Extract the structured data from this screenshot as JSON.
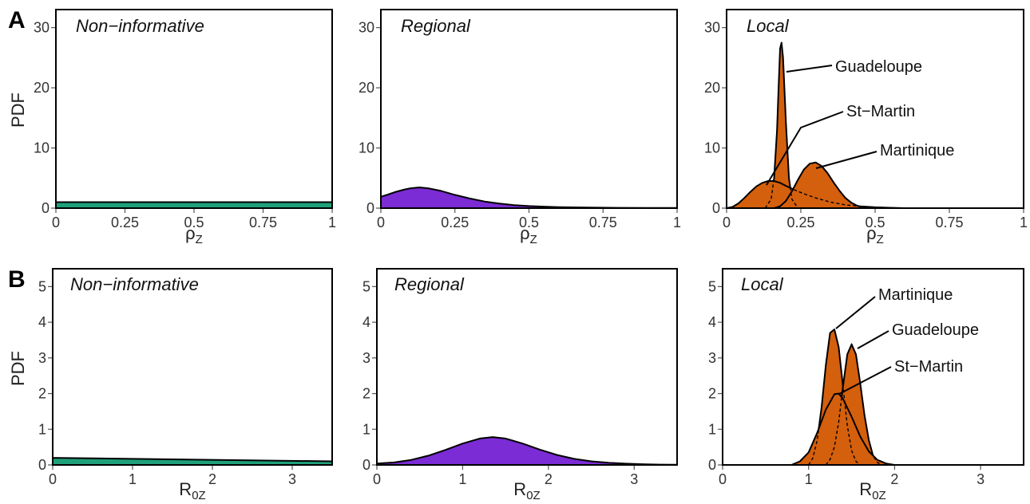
{
  "chart_data": [
    {
      "type": "area",
      "row": "A",
      "title": "Non−informative",
      "xlabel": "ρ",
      "xlabel_sub": "Z",
      "ylabel": "PDF",
      "xlim": [
        0,
        1
      ],
      "ylim": [
        0,
        33
      ],
      "xticks": [
        0,
        0.25,
        0.5,
        0.75,
        1
      ],
      "xtick_labels": [
        "0",
        "0.25",
        "0.5",
        "0.75",
        "1"
      ],
      "yticks": [
        0,
        10,
        20,
        30
      ],
      "ytick_labels": [
        "0",
        "10",
        "20",
        "30"
      ],
      "color": "#1fa07a",
      "series": [
        {
          "x": [
            0,
            1
          ],
          "y": [
            1,
            1
          ],
          "filled": true
        }
      ]
    },
    {
      "type": "area",
      "row": "A",
      "title": "Regional",
      "xlabel": "ρ",
      "xlabel_sub": "Z",
      "ylabel": "",
      "xlim": [
        0,
        1
      ],
      "ylim": [
        0,
        33
      ],
      "xticks": [
        0,
        0.25,
        0.5,
        0.75,
        1
      ],
      "xtick_labels": [
        "0",
        "0.25",
        "0.5",
        "0.75",
        "1"
      ],
      "yticks": [
        0,
        10,
        20,
        30
      ],
      "ytick_labels": [
        "0",
        "10",
        "20",
        "30"
      ],
      "color": "#7b2cd4",
      "series": [
        {
          "x": [
            0,
            0.02,
            0.05,
            0.08,
            0.1,
            0.13,
            0.16,
            0.2,
            0.25,
            0.3,
            0.35,
            0.4,
            0.45,
            0.5,
            0.55,
            0.6,
            0.7,
            0.8,
            0.9,
            1.0
          ],
          "y": [
            1.9,
            2.2,
            2.7,
            3.1,
            3.3,
            3.45,
            3.3,
            2.9,
            2.2,
            1.6,
            1.1,
            0.75,
            0.5,
            0.35,
            0.25,
            0.17,
            0.09,
            0.05,
            0.03,
            0.02
          ],
          "filled": true
        }
      ]
    },
    {
      "type": "area",
      "row": "A",
      "title": "Local",
      "xlabel": "ρ",
      "xlabel_sub": "Z",
      "ylabel": "",
      "xlim": [
        0,
        1
      ],
      "ylim": [
        0,
        33
      ],
      "xticks": [
        0,
        0.25,
        0.5,
        0.75,
        1
      ],
      "xtick_labels": [
        "0",
        "0.25",
        "0.5",
        "0.75",
        "1"
      ],
      "yticks": [
        0,
        10,
        20,
        30
      ],
      "ytick_labels": [
        "0",
        "10",
        "20",
        "30"
      ],
      "color": "#d45f0c",
      "series": [
        {
          "name": "Guadeloupe",
          "x": [
            0.13,
            0.15,
            0.16,
            0.17,
            0.175,
            0.18,
            0.185,
            0.19,
            0.2,
            0.21,
            0.22,
            0.24
          ],
          "y": [
            0,
            1.5,
            5,
            13,
            20,
            26.5,
            27.5,
            25,
            14,
            5,
            1.5,
            0
          ],
          "filled": true
        },
        {
          "name": "St−Martin",
          "x": [
            0,
            0.02,
            0.04,
            0.06,
            0.08,
            0.1,
            0.12,
            0.14,
            0.16,
            0.18,
            0.2,
            0.23,
            0.26,
            0.3,
            0.35,
            0.4,
            0.45,
            0.5,
            0.55,
            0.6
          ],
          "y": [
            0,
            0.2,
            0.8,
            1.7,
            2.7,
            3.6,
            4.2,
            4.5,
            4.5,
            4.2,
            3.7,
            3.0,
            2.4,
            1.7,
            1.0,
            0.55,
            0.3,
            0.15,
            0.07,
            0
          ],
          "filled": true
        },
        {
          "name": "Martinique",
          "x": [
            0.16,
            0.18,
            0.2,
            0.22,
            0.24,
            0.26,
            0.28,
            0.3,
            0.32,
            0.34,
            0.36,
            0.38,
            0.4,
            0.42,
            0.44,
            0.46,
            0.48
          ],
          "y": [
            0,
            0.3,
            1.2,
            2.8,
            4.7,
            6.4,
            7.4,
            7.6,
            7.0,
            5.8,
            4.3,
            2.9,
            1.7,
            0.9,
            0.4,
            0.15,
            0
          ],
          "filled": true
        }
      ],
      "annotations": [
        "Guadeloupe",
        "St−Martin",
        "Martinique"
      ]
    },
    {
      "type": "area",
      "row": "B",
      "title": "Non−informative",
      "xlabel": "R",
      "xlabel_sub": "0Z",
      "ylabel": "PDF",
      "xlim": [
        0,
        3.5
      ],
      "ylim": [
        0,
        5.5
      ],
      "xticks": [
        0,
        1,
        2,
        3
      ],
      "xtick_labels": [
        "0",
        "1",
        "2",
        "3"
      ],
      "yticks": [
        0,
        1,
        2,
        3,
        4,
        5
      ],
      "ytick_labels": [
        "0",
        "1",
        "2",
        "3",
        "4",
        "5"
      ],
      "color": "#1fa07a",
      "series": [
        {
          "x": [
            0,
            3.5
          ],
          "y": [
            0.2,
            0.1
          ],
          "filled": true
        }
      ]
    },
    {
      "type": "area",
      "row": "B",
      "title": "Regional",
      "xlabel": "R",
      "xlabel_sub": "0Z",
      "ylabel": "",
      "xlim": [
        0,
        3.5
      ],
      "ylim": [
        0,
        5.5
      ],
      "xticks": [
        0,
        1,
        2,
        3
      ],
      "xtick_labels": [
        "0",
        "1",
        "2",
        "3"
      ],
      "yticks": [
        0,
        1,
        2,
        3,
        4,
        5
      ],
      "ytick_labels": [
        "0",
        "1",
        "2",
        "3",
        "4",
        "5"
      ],
      "color": "#7b2cd4",
      "series": [
        {
          "x": [
            0,
            0.2,
            0.4,
            0.6,
            0.8,
            1.0,
            1.2,
            1.35,
            1.5,
            1.7,
            1.9,
            2.1,
            2.3,
            2.5,
            2.7,
            2.9,
            3.1,
            3.3,
            3.5
          ],
          "y": [
            0.04,
            0.07,
            0.14,
            0.26,
            0.42,
            0.6,
            0.74,
            0.78,
            0.74,
            0.6,
            0.43,
            0.28,
            0.17,
            0.1,
            0.06,
            0.035,
            0.02,
            0.01,
            0.005
          ],
          "filled": true
        }
      ]
    },
    {
      "type": "area",
      "row": "B",
      "title": "Local",
      "xlabel": "R",
      "xlabel_sub": "0Z",
      "ylabel": "",
      "xlim": [
        0,
        3.5
      ],
      "ylim": [
        0,
        5.5
      ],
      "xticks": [
        0,
        1,
        2,
        3
      ],
      "xtick_labels": [
        "0",
        "1",
        "2",
        "3"
      ],
      "yticks": [
        0,
        1,
        2,
        3,
        4,
        5
      ],
      "ytick_labels": [
        "0",
        "1",
        "2",
        "3",
        "4",
        "5"
      ],
      "color": "#d45f0c",
      "series": [
        {
          "name": "Martinique",
          "x": [
            1.0,
            1.05,
            1.1,
            1.15,
            1.2,
            1.25,
            1.3,
            1.35,
            1.4,
            1.45,
            1.5,
            1.55,
            1.6
          ],
          "y": [
            0,
            0.2,
            0.7,
            1.6,
            2.8,
            3.7,
            3.8,
            3.3,
            2.2,
            1.1,
            0.4,
            0.1,
            0
          ],
          "filled": true
        },
        {
          "name": "Guadeloupe",
          "x": [
            1.2,
            1.25,
            1.3,
            1.35,
            1.4,
            1.45,
            1.5,
            1.55,
            1.6,
            1.65,
            1.7,
            1.75,
            1.8,
            1.85
          ],
          "y": [
            0,
            0.15,
            0.5,
            1.2,
            2.2,
            3.1,
            3.38,
            3.1,
            2.3,
            1.4,
            0.7,
            0.25,
            0.07,
            0
          ],
          "filled": true
        },
        {
          "name": "St−Martin",
          "x": [
            0.8,
            0.9,
            1.0,
            1.1,
            1.2,
            1.3,
            1.35,
            1.4,
            1.5,
            1.6,
            1.7,
            1.8,
            1.9,
            2.0
          ],
          "y": [
            0,
            0.1,
            0.35,
            0.9,
            1.55,
            1.98,
            2.0,
            1.85,
            1.35,
            0.8,
            0.38,
            0.14,
            0.04,
            0
          ],
          "filled": true
        }
      ],
      "annotations": [
        "Martinique",
        "Guadeloupe",
        "St−Martin"
      ]
    }
  ],
  "row_letters": [
    "A",
    "B"
  ]
}
